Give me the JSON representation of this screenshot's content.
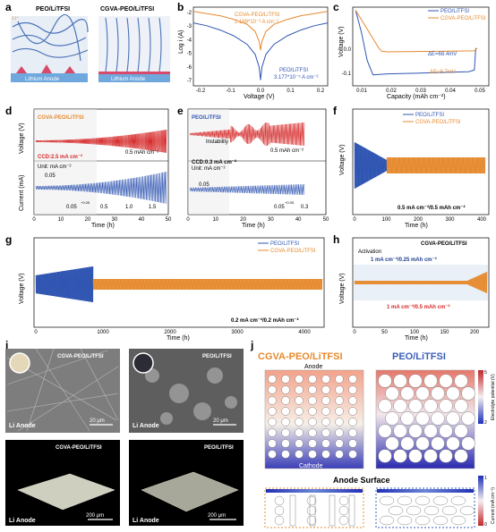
{
  "colors": {
    "peo": "#2f55b2",
    "cgva": "#e68a2e",
    "red": "#d62828",
    "blue_dark": "#1f3f8f"
  },
  "panels": {
    "a": {
      "letter": "a",
      "left_title": "PEO/LiTFSI",
      "right_title": "CGVA-PEO/LiTFSI",
      "anode": "Lithium Anode",
      "ion": "Li⁺"
    },
    "b": {
      "letter": "b",
      "xlabel": "Voltage (V)",
      "ylabel": "Log i (A)",
      "cgva_label": "CGVA-PEO/LiTFSI",
      "cgva_value": "1.169*10⁻³ A cm⁻²",
      "peo_label": "PEO/LiTFSI",
      "peo_value": "3.177*10⁻⁵ A cm⁻²",
      "xticks": [
        "-0.2",
        "-0.1",
        "0.0",
        "0.1",
        "0.2"
      ],
      "yticks": [
        "-2",
        "-3",
        "-4",
        "-5",
        "-6",
        "-7"
      ]
    },
    "c": {
      "letter": "c",
      "xlabel": "Capacity (mAh cm⁻²)",
      "ylabel": "Voltage (V)",
      "legend": [
        "PEO/LiTFSI",
        "CGVA-PEO/LiTFSI"
      ],
      "de1": "ΔE=68.4mV",
      "de2": "ΔE=8.7mV",
      "xticks": [
        "0.01",
        "0.02",
        "0.03",
        "0.04",
        "0.05"
      ],
      "yticks": [
        "0.0",
        "-0.1"
      ]
    },
    "d": {
      "letter": "d",
      "title": "CGVA-PEO/LiTFSI",
      "ccd": "CCD:2.5 mA cm⁻²",
      "rate_label": "0.5 mAh cm⁻²",
      "unit": "Unit: mA cm⁻²",
      "start": "0.05",
      "steps": [
        "0.05",
        "0.5",
        "1.0",
        "1.5"
      ],
      "step_incr": "+0.05",
      "xlabel": "Time (h)",
      "ylabel_top": "Voltage (V)",
      "ylabel_bot": "Current (mA)",
      "xticks": [
        "0",
        "10",
        "20",
        "30",
        "40",
        "50"
      ]
    },
    "e": {
      "letter": "e",
      "title": "PEO/LiTFSI",
      "ccd": "CCD:0.3 mA cm⁻²",
      "rate_label": "0.5 mAh cm⁻²",
      "instability": "Instability",
      "unit": "Unit: mA cm⁻²",
      "start": "0.05",
      "steps": [
        "0.05",
        "0.3"
      ],
      "step_incr": "+0.05",
      "xlabel": "Time (h)",
      "xticks": [
        "0",
        "10",
        "20",
        "30",
        "40",
        "50"
      ]
    },
    "f": {
      "letter": "f",
      "legend": [
        "PEO/LiTFSI",
        "CGVA-PEO/LiTFSI"
      ],
      "condition": "0.5 mA cm⁻²/0.5 mAh cm⁻²",
      "xlabel": "Time (h)",
      "ylabel": "Voltage (V)",
      "xticks": [
        "0",
        "100",
        "200",
        "300",
        "400"
      ]
    },
    "g": {
      "letter": "g",
      "legend": [
        "PEO/LiTFSI",
        "CGVA-PEO/LiTFSI"
      ],
      "condition": "0.2 mA cm⁻²/0.2 mAh cm⁻²",
      "xlabel": "Time (h)",
      "ylabel": "Voltage (V)",
      "xticks": [
        "0",
        "1000",
        "2000",
        "3000",
        "4000"
      ]
    },
    "h": {
      "letter": "h",
      "title": "CGVA-PEO/LiTFSI",
      "activation": "Activation",
      "cond1": "1 mA cm⁻²/0.25 mAh cm⁻²",
      "cond2": "1 mA cm⁻²/0.5 mAh cm⁻²",
      "xlabel": "Time (h)",
      "ylabel": "Voltage (V)",
      "xticks": [
        "0",
        "50",
        "100",
        "150",
        "200"
      ]
    },
    "i": {
      "letter": "i",
      "tl": "CGVA-PEO/LiTFSI",
      "tr": "PEO/LiTFSI",
      "bl": "CGVA-PEO/LiTFSI",
      "br": "PEO/LiTFSI",
      "li": "Li Anode",
      "scale20": "20 μm",
      "scale200": "200 μm"
    },
    "j": {
      "letter": "j",
      "cgva": "CGVA-PEO/LiTFSI",
      "peo": "PEO/LiTFSI",
      "anode": "Anode",
      "cathode": "Cathode",
      "anode_surface": "Anode Surface",
      "cb1_label": "Electrolyte potential (V)",
      "cb1_max": "5",
      "cb1_min": "2",
      "cb2_label": "Current (mA cm⁻²)",
      "cb2_max": "1",
      "cb2_min": "0"
    }
  },
  "chart_data": [
    {
      "panel": "b",
      "type": "line",
      "xlabel": "Voltage (V)",
      "ylabel": "Log i (A)",
      "xlim": [
        -0.25,
        0.25
      ],
      "ylim": [
        -7.5,
        -2
      ],
      "series": [
        {
          "name": "CGVA-PEO/LiTFSI",
          "x": [
            -0.25,
            -0.2,
            -0.15,
            -0.1,
            -0.05,
            -0.02,
            -0.005,
            0,
            0.005,
            0.02,
            0.05,
            0.1,
            0.15,
            0.2,
            0.25
          ],
          "y": [
            -2.3,
            -2.45,
            -2.6,
            -2.85,
            -3.2,
            -3.7,
            -4.4,
            -5.0,
            -4.4,
            -3.7,
            -3.2,
            -2.85,
            -2.6,
            -2.45,
            -2.3
          ]
        },
        {
          "name": "PEO/LiTFSI",
          "x": [
            -0.25,
            -0.2,
            -0.15,
            -0.1,
            -0.05,
            -0.02,
            -0.005,
            0,
            0.005,
            0.02,
            0.05,
            0.1,
            0.15,
            0.2,
            0.25
          ],
          "y": [
            -3.1,
            -3.3,
            -3.6,
            -4.0,
            -4.6,
            -5.3,
            -6.2,
            -7.1,
            -6.2,
            -5.3,
            -4.6,
            -4.0,
            -3.6,
            -3.3,
            -3.1
          ]
        }
      ]
    },
    {
      "panel": "c",
      "type": "line",
      "xlabel": "Capacity (mAh cm⁻²)",
      "ylabel": "Voltage (V)",
      "xlim": [
        0.008,
        0.055
      ],
      "ylim": [
        -0.12,
        0.13
      ],
      "series": [
        {
          "name": "PEO/LiTFSI",
          "x": [
            0.009,
            0.011,
            0.013,
            0.015,
            0.02,
            0.03,
            0.04,
            0.048,
            0.05,
            0.0505
          ],
          "y": [
            0.12,
            0.05,
            -0.04,
            -0.085,
            -0.082,
            -0.08,
            -0.077,
            -0.075,
            -0.07,
            0.0
          ]
        },
        {
          "name": "CGVA-PEO/LiTFSI",
          "x": [
            0.009,
            0.011,
            0.013,
            0.015,
            0.017,
            0.018,
            0.02,
            0.03,
            0.04,
            0.05,
            0.051
          ],
          "y": [
            0.12,
            0.09,
            0.06,
            0.03,
            0.0,
            -0.01,
            -0.012,
            -0.011,
            -0.01,
            -0.009,
            0.0
          ]
        }
      ]
    },
    {
      "panel": "d",
      "type": "line",
      "series": [
        {
          "name": "CGVA-PEO/LiTFSI voltage",
          "x": [
            0,
            50
          ],
          "y": [
            0.02,
            0.4
          ]
        },
        {
          "name": "current",
          "x": [
            0,
            50
          ],
          "y": [
            0.05,
            2.5
          ]
        }
      ]
    },
    {
      "panel": "e",
      "type": "line",
      "series": [
        {
          "name": "PEO/LiTFSI voltage",
          "x": [
            0,
            40
          ],
          "y": [
            0.05,
            0.9
          ]
        },
        {
          "name": "current",
          "x": [
            0,
            40
          ],
          "y": [
            0.05,
            0.3
          ]
        }
      ]
    },
    {
      "panel": "f",
      "type": "line",
      "xlim": [
        0,
        400
      ],
      "series": [
        {
          "name": "PEO/LiTFSI",
          "x": [
            0,
            100
          ],
          "y": [
            0.6,
            0.25
          ]
        },
        {
          "name": "CGVA-PEO/LiTFSI",
          "x": [
            100,
            400
          ],
          "y": [
            0.15,
            0.15
          ]
        }
      ]
    },
    {
      "panel": "g",
      "type": "line",
      "xlim": [
        0,
        4000
      ],
      "series": [
        {
          "name": "PEO/LiTFSI",
          "x": [
            0,
            700
          ],
          "y": [
            0.2,
            0.35
          ]
        },
        {
          "name": "CGVA-PEO/LiTFSI",
          "x": [
            700,
            4000
          ],
          "y": [
            0.1,
            0.1
          ]
        }
      ]
    },
    {
      "panel": "h",
      "type": "line",
      "xlim": [
        0,
        220
      ],
      "series": [
        {
          "name": "CGVA-PEO/LiTFSI",
          "x": [
            0,
            220
          ],
          "y": [
            0.1,
            0.2
          ]
        }
      ]
    }
  ]
}
